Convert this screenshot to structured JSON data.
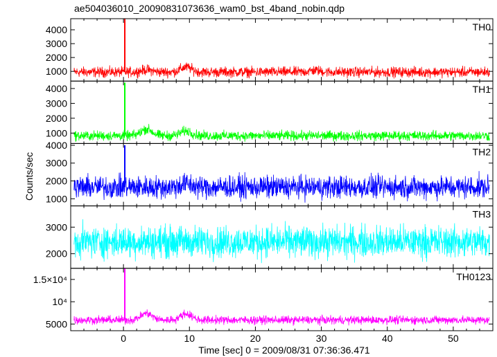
{
  "chart_data": {
    "type": "line",
    "title": "ae504036010_20090831073636_wam0_bst_4band_nobin.qdp",
    "xlabel": "Time [sec] 0 = 2009/08/31 07:36:36.471",
    "ylabel": "Counts/sec",
    "xlim": [
      -8,
      56
    ],
    "x_ticks": [
      0,
      10,
      20,
      30,
      40,
      50
    ],
    "x_tick_labels": [
      "0",
      "10",
      "20",
      "30",
      "40",
      "50"
    ],
    "grid": false,
    "panels": [
      {
        "name": "TH0",
        "color": "#ff0000",
        "ylim": [
          300,
          4800
        ],
        "y_ticks": [
          1000,
          2000,
          3000,
          4000
        ],
        "y_tick_labels": [
          "1000",
          "2000",
          "3000",
          "4000"
        ],
        "baseline": 950,
        "noise": 280,
        "burst": {
          "x": 0.2,
          "y": 4800
        },
        "bumps": [
          {
            "x": 3.5,
            "h": 150
          },
          {
            "x": 9.5,
            "h": 350
          },
          {
            "x": 29,
            "h": 120
          }
        ],
        "x": [
          -7.5,
          -5,
          0,
          0.2,
          1,
          3.5,
          9.5,
          20,
          30,
          40,
          50,
          55.5
        ],
        "y": [
          950,
          950,
          950,
          4800,
          1000,
          1100,
          1300,
          950,
          1050,
          950,
          950,
          950
        ]
      },
      {
        "name": "TH1",
        "color": "#00ff00",
        "ylim": [
          300,
          4500
        ],
        "y_ticks": [
          1000,
          2000,
          3000,
          4000
        ],
        "y_tick_labels": [
          "1000",
          "2000",
          "3000",
          "4000"
        ],
        "baseline": 820,
        "noise": 250,
        "burst": {
          "x": 0.2,
          "y": 4400
        },
        "bumps": [
          {
            "x": 3.5,
            "h": 450
          },
          {
            "x": 9.5,
            "h": 320
          }
        ],
        "x": [
          -7.5,
          -5,
          0,
          0.2,
          1,
          3.5,
          9.5,
          20,
          30,
          40,
          50,
          55.5
        ],
        "y": [
          800,
          820,
          820,
          4400,
          900,
          1250,
          1100,
          900,
          950,
          850,
          820,
          800
        ]
      },
      {
        "name": "TH2",
        "color": "#0000ff",
        "ylim": [
          600,
          4100
        ],
        "y_ticks": [
          1000,
          2000,
          3000,
          4000
        ],
        "y_tick_labels": [
          "1000",
          "2000",
          "3000",
          "4000"
        ],
        "baseline": 1650,
        "noise": 480,
        "burst": {
          "x": 0.2,
          "y": 4000
        },
        "bumps": [
          {
            "x": 9.5,
            "h": 180
          }
        ],
        "x": [
          -7.5,
          -5,
          0,
          0.2,
          1,
          3.5,
          9.5,
          20,
          30,
          40,
          50,
          55.5
        ],
        "y": [
          1650,
          1650,
          1650,
          4000,
          1700,
          1700,
          1800,
          1650,
          1700,
          1650,
          1650,
          1650
        ]
      },
      {
        "name": "TH3",
        "color": "#00ffff",
        "ylim": [
          1450,
          3800
        ],
        "y_ticks": [
          2000,
          3000
        ],
        "y_tick_labels": [
          "2000",
          "3000"
        ],
        "baseline": 2450,
        "noise": 450,
        "burst": null,
        "bumps": [],
        "x": [
          -7.5,
          -5,
          0,
          1,
          3.5,
          9.5,
          20,
          30,
          40,
          50,
          55.5
        ],
        "y": [
          2450,
          2450,
          2450,
          2450,
          2450,
          2450,
          2450,
          2450,
          2450,
          2450,
          2450
        ]
      },
      {
        "name": "TH0123",
        "color": "#ff00ff",
        "ylim": [
          3500,
          17500
        ],
        "y_ticks": [
          5000,
          10000,
          15000
        ],
        "y_tick_labels": [
          "5000",
          "10⁴",
          "1.5×10⁴"
        ],
        "baseline": 5900,
        "noise": 700,
        "burst": {
          "x": 0.2,
          "y": 17500
        },
        "bumps": [
          {
            "x": 3.5,
            "h": 1500
          },
          {
            "x": 9.5,
            "h": 1400
          }
        ],
        "x": [
          -7.5,
          -5,
          0,
          0.2,
          1,
          3.5,
          9.5,
          20,
          30,
          40,
          50,
          55.5
        ],
        "y": [
          5900,
          5900,
          5900,
          17500,
          6200,
          7500,
          7300,
          6000,
          6200,
          5900,
          5900,
          5900
        ]
      }
    ]
  }
}
